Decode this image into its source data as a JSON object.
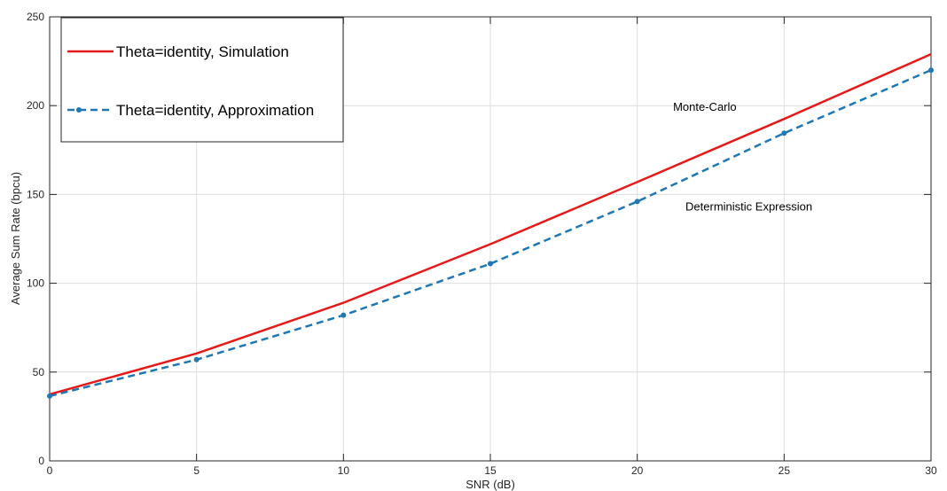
{
  "chart_data": {
    "type": "line",
    "xlabel": "SNR (dB)",
    "ylabel": "Average Sum Rate (bpcu)",
    "xlim": [
      0,
      30
    ],
    "ylim": [
      0,
      250
    ],
    "xticks": [
      0,
      5,
      10,
      15,
      20,
      25,
      30
    ],
    "yticks": [
      0,
      50,
      100,
      150,
      200,
      250
    ],
    "grid": true,
    "legend_position": "top-left",
    "series": [
      {
        "name": "Theta=identity, Simulation",
        "color": "#e61919",
        "style": "solid",
        "marker": "none",
        "x": [
          0,
          5,
          10,
          15,
          20,
          25,
          30
        ],
        "y": [
          37.5,
          60.5,
          89,
          122,
          157,
          192.5,
          229
        ]
      },
      {
        "name": "Theta=identity, Approximation",
        "color": "#1f77b4",
        "style": "dashed",
        "marker": "dot",
        "x": [
          0,
          5,
          10,
          15,
          20,
          25,
          30
        ],
        "y": [
          36.5,
          57,
          82,
          111,
          146,
          184.5,
          220
        ]
      }
    ],
    "annotations": [
      {
        "text": "Monte-Carlo",
        "x": 22.3,
        "y": 197
      },
      {
        "text": "Deterministic Expression",
        "x": 23.8,
        "y": 141
      }
    ]
  }
}
